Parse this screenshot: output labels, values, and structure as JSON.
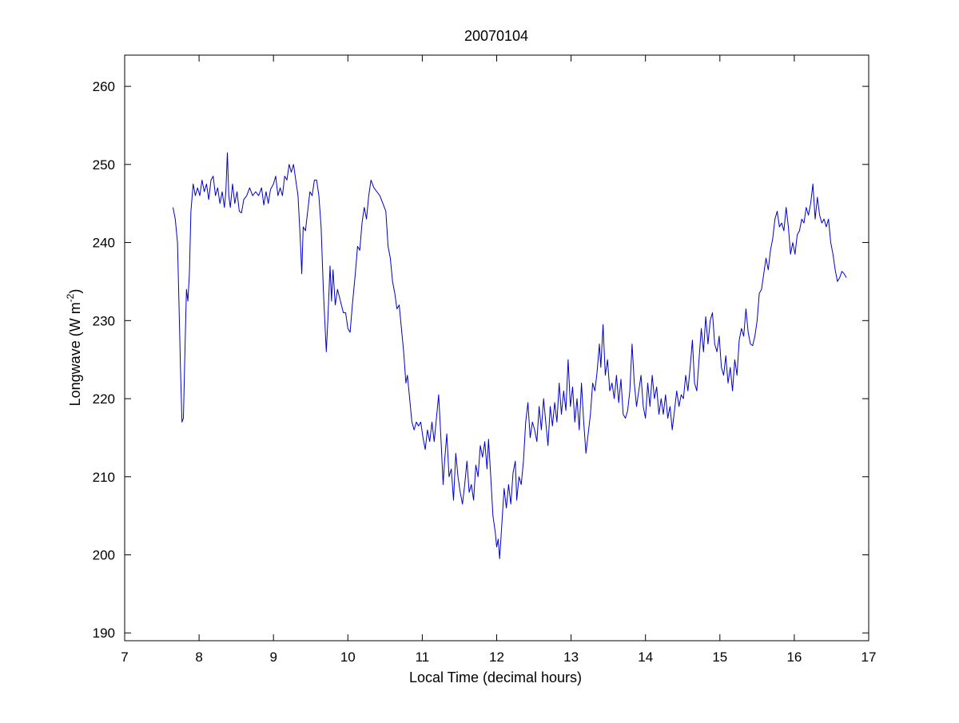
{
  "colors": {
    "series": "#0000cc",
    "axes": "#000000",
    "background": "#ffffff"
  },
  "chart_data": {
    "type": "line",
    "title": "20070104",
    "xlabel": "Local Time (decimal hours)",
    "ylabel_main": "Longwave (W m",
    "ylabel_sup": "-2",
    "ylabel_close": ")",
    "xlim": [
      7,
      17
    ],
    "ylim": [
      189,
      264
    ],
    "xticks": [
      7,
      8,
      9,
      10,
      11,
      12,
      13,
      14,
      15,
      16,
      17
    ],
    "yticks": [
      190,
      200,
      210,
      220,
      230,
      240,
      250,
      260
    ],
    "grid": false,
    "box": true,
    "series": [
      {
        "color": "#0000cc",
        "points": [
          [
            7.65,
            244.5
          ],
          [
            7.68,
            243.0
          ],
          [
            7.71,
            240.0
          ],
          [
            7.73,
            232.0
          ],
          [
            7.75,
            224.0
          ],
          [
            7.77,
            217.0
          ],
          [
            7.79,
            217.5
          ],
          [
            7.81,
            226.0
          ],
          [
            7.83,
            234.0
          ],
          [
            7.85,
            232.5
          ],
          [
            7.87,
            236.0
          ],
          [
            7.89,
            244.0
          ],
          [
            7.92,
            247.5
          ],
          [
            7.95,
            246.0
          ],
          [
            7.98,
            247.0
          ],
          [
            8.01,
            246.0
          ],
          [
            8.04,
            248.0
          ],
          [
            8.07,
            246.5
          ],
          [
            8.1,
            247.5
          ],
          [
            8.13,
            245.5
          ],
          [
            8.16,
            248.0
          ],
          [
            8.19,
            248.5
          ],
          [
            8.22,
            246.0
          ],
          [
            8.25,
            247.0
          ],
          [
            8.28,
            245.0
          ],
          [
            8.31,
            246.5
          ],
          [
            8.34,
            244.5
          ],
          [
            8.36,
            246.5
          ],
          [
            8.38,
            251.5
          ],
          [
            8.4,
            246.0
          ],
          [
            8.42,
            244.5
          ],
          [
            8.45,
            247.5
          ],
          [
            8.48,
            245.0
          ],
          [
            8.51,
            246.5
          ],
          [
            8.54,
            244.0
          ],
          [
            8.57,
            243.8
          ],
          [
            8.6,
            245.5
          ],
          [
            8.64,
            246.0
          ],
          [
            8.68,
            247.0
          ],
          [
            8.72,
            246.0
          ],
          [
            8.76,
            246.5
          ],
          [
            8.8,
            246.0
          ],
          [
            8.84,
            247.0
          ],
          [
            8.87,
            244.8
          ],
          [
            8.9,
            246.5
          ],
          [
            8.93,
            245.0
          ],
          [
            8.96,
            246.8
          ],
          [
            9.0,
            247.5
          ],
          [
            9.03,
            248.5
          ],
          [
            9.06,
            246.0
          ],
          [
            9.09,
            247.0
          ],
          [
            9.12,
            246.0
          ],
          [
            9.15,
            248.5
          ],
          [
            9.18,
            248.0
          ],
          [
            9.21,
            250.0
          ],
          [
            9.24,
            249.0
          ],
          [
            9.27,
            250.0
          ],
          [
            9.3,
            248.0
          ],
          [
            9.33,
            246.0
          ],
          [
            9.36,
            240.5
          ],
          [
            9.38,
            236.0
          ],
          [
            9.4,
            242.0
          ],
          [
            9.43,
            241.5
          ],
          [
            9.46,
            244.0
          ],
          [
            9.49,
            246.5
          ],
          [
            9.52,
            246.0
          ],
          [
            9.55,
            248.0
          ],
          [
            9.58,
            248.0
          ],
          [
            9.61,
            246.0
          ],
          [
            9.64,
            242.0
          ],
          [
            9.67,
            234.0
          ],
          [
            9.69,
            230.0
          ],
          [
            9.71,
            226.0
          ],
          [
            9.73,
            230.0
          ],
          [
            9.76,
            237.0
          ],
          [
            9.78,
            232.5
          ],
          [
            9.8,
            236.5
          ],
          [
            9.83,
            232.0
          ],
          [
            9.86,
            234.0
          ],
          [
            9.9,
            232.5
          ],
          [
            9.94,
            231.0
          ],
          [
            9.97,
            231.0
          ],
          [
            10.0,
            229.0
          ],
          [
            10.03,
            228.5
          ],
          [
            10.06,
            232.0
          ],
          [
            10.1,
            236.0
          ],
          [
            10.13,
            239.5
          ],
          [
            10.16,
            239.0
          ],
          [
            10.19,
            242.5
          ],
          [
            10.22,
            244.5
          ],
          [
            10.25,
            243.0
          ],
          [
            10.28,
            246.0
          ],
          [
            10.31,
            248.0
          ],
          [
            10.35,
            247.0
          ],
          [
            10.39,
            246.5
          ],
          [
            10.43,
            246.0
          ],
          [
            10.47,
            245.0
          ],
          [
            10.51,
            244.0
          ],
          [
            10.54,
            239.5
          ],
          [
            10.57,
            238.0
          ],
          [
            10.6,
            235.0
          ],
          [
            10.63,
            233.5
          ],
          [
            10.66,
            231.5
          ],
          [
            10.69,
            232.0
          ],
          [
            10.72,
            229.0
          ],
          [
            10.75,
            226.0
          ],
          [
            10.78,
            222.0
          ],
          [
            10.8,
            223.0
          ],
          [
            10.83,
            220.0
          ],
          [
            10.86,
            217.0
          ],
          [
            10.89,
            216.0
          ],
          [
            10.92,
            217.0
          ],
          [
            10.95,
            216.5
          ],
          [
            10.98,
            217.0
          ],
          [
            11.01,
            215.0
          ],
          [
            11.04,
            213.5
          ],
          [
            11.07,
            216.0
          ],
          [
            11.1,
            214.5
          ],
          [
            11.13,
            217.0
          ],
          [
            11.16,
            214.5
          ],
          [
            11.19,
            217.5
          ],
          [
            11.22,
            220.5
          ],
          [
            11.25,
            215.0
          ],
          [
            11.28,
            209.0
          ],
          [
            11.3,
            212.0
          ],
          [
            11.33,
            215.5
          ],
          [
            11.36,
            210.0
          ],
          [
            11.39,
            211.0
          ],
          [
            11.42,
            207.0
          ],
          [
            11.45,
            213.0
          ],
          [
            11.48,
            210.0
          ],
          [
            11.51,
            208.0
          ],
          [
            11.54,
            206.5
          ],
          [
            11.57,
            209.0
          ],
          [
            11.6,
            212.0
          ],
          [
            11.63,
            208.0
          ],
          [
            11.66,
            209.0
          ],
          [
            11.69,
            207.0
          ],
          [
            11.72,
            211.5
          ],
          [
            11.75,
            210.0
          ],
          [
            11.78,
            214.0
          ],
          [
            11.81,
            212.5
          ],
          [
            11.84,
            214.5
          ],
          [
            11.87,
            211.0
          ],
          [
            11.89,
            214.8
          ],
          [
            11.92,
            210.0
          ],
          [
            11.95,
            205.0
          ],
          [
            11.98,
            203.0
          ],
          [
            12.0,
            201.0
          ],
          [
            12.02,
            202.0
          ],
          [
            12.04,
            199.5
          ],
          [
            12.07,
            204.0
          ],
          [
            12.1,
            208.5
          ],
          [
            12.13,
            206.0
          ],
          [
            12.16,
            209.0
          ],
          [
            12.19,
            206.5
          ],
          [
            12.22,
            210.5
          ],
          [
            12.25,
            212.0
          ],
          [
            12.27,
            207.0
          ],
          [
            12.3,
            210.0
          ],
          [
            12.33,
            209.0
          ],
          [
            12.36,
            212.0
          ],
          [
            12.39,
            217.0
          ],
          [
            12.42,
            219.5
          ],
          [
            12.45,
            215.0
          ],
          [
            12.48,
            217.0
          ],
          [
            12.51,
            216.0
          ],
          [
            12.54,
            214.5
          ],
          [
            12.57,
            219.0
          ],
          [
            12.6,
            216.0
          ],
          [
            12.63,
            220.0
          ],
          [
            12.66,
            217.0
          ],
          [
            12.69,
            214.0
          ],
          [
            12.72,
            219.0
          ],
          [
            12.75,
            216.5
          ],
          [
            12.78,
            219.5
          ],
          [
            12.81,
            217.0
          ],
          [
            12.84,
            222.0
          ],
          [
            12.87,
            218.0
          ],
          [
            12.9,
            221.0
          ],
          [
            12.93,
            218.5
          ],
          [
            12.96,
            225.0
          ],
          [
            12.99,
            219.0
          ],
          [
            13.02,
            221.5
          ],
          [
            13.05,
            217.0
          ],
          [
            13.08,
            220.0
          ],
          [
            13.11,
            216.0
          ],
          [
            13.14,
            222.0
          ],
          [
            13.17,
            217.0
          ],
          [
            13.2,
            213.0
          ],
          [
            13.23,
            215.5
          ],
          [
            13.26,
            218.0
          ],
          [
            13.29,
            222.0
          ],
          [
            13.32,
            221.0
          ],
          [
            13.35,
            223.5
          ],
          [
            13.38,
            227.0
          ],
          [
            13.4,
            224.0
          ],
          [
            13.43,
            229.5
          ],
          [
            13.46,
            223.0
          ],
          [
            13.49,
            225.0
          ],
          [
            13.52,
            221.0
          ],
          [
            13.55,
            222.0
          ],
          [
            13.58,
            220.0
          ],
          [
            13.61,
            223.0
          ],
          [
            13.64,
            219.5
          ],
          [
            13.67,
            222.5
          ],
          [
            13.7,
            218.0
          ],
          [
            13.73,
            217.5
          ],
          [
            13.76,
            218.5
          ],
          [
            13.79,
            221.0
          ],
          [
            13.82,
            227.0
          ],
          [
            13.85,
            222.0
          ],
          [
            13.88,
            219.0
          ],
          [
            13.91,
            221.0
          ],
          [
            13.94,
            223.0
          ],
          [
            13.97,
            219.0
          ],
          [
            14.0,
            217.5
          ],
          [
            14.03,
            222.0
          ],
          [
            14.06,
            219.0
          ],
          [
            14.09,
            223.0
          ],
          [
            14.12,
            220.0
          ],
          [
            14.15,
            221.5
          ],
          [
            14.18,
            218.0
          ],
          [
            14.21,
            220.0
          ],
          [
            14.24,
            218.0
          ],
          [
            14.27,
            220.5
          ],
          [
            14.3,
            217.5
          ],
          [
            14.33,
            219.0
          ],
          [
            14.36,
            216.0
          ],
          [
            14.39,
            218.5
          ],
          [
            14.42,
            221.0
          ],
          [
            14.45,
            219.0
          ],
          [
            14.48,
            220.5
          ],
          [
            14.51,
            220.0
          ],
          [
            14.54,
            223.0
          ],
          [
            14.57,
            221.0
          ],
          [
            14.6,
            224.0
          ],
          [
            14.63,
            227.5
          ],
          [
            14.66,
            222.0
          ],
          [
            14.69,
            221.0
          ],
          [
            14.72,
            225.0
          ],
          [
            14.75,
            229.0
          ],
          [
            14.78,
            226.0
          ],
          [
            14.81,
            230.5
          ],
          [
            14.84,
            227.0
          ],
          [
            14.87,
            230.0
          ],
          [
            14.9,
            231.0
          ],
          [
            14.93,
            227.0
          ],
          [
            14.96,
            226.0
          ],
          [
            14.99,
            228.0
          ],
          [
            15.02,
            224.0
          ],
          [
            15.05,
            223.0
          ],
          [
            15.08,
            225.5
          ],
          [
            15.11,
            222.0
          ],
          [
            15.14,
            224.0
          ],
          [
            15.17,
            221.0
          ],
          [
            15.2,
            225.0
          ],
          [
            15.23,
            223.0
          ],
          [
            15.26,
            227.5
          ],
          [
            15.29,
            229.0
          ],
          [
            15.32,
            228.0
          ],
          [
            15.35,
            231.5
          ],
          [
            15.38,
            228.5
          ],
          [
            15.41,
            227.0
          ],
          [
            15.44,
            226.8
          ],
          [
            15.47,
            228.0
          ],
          [
            15.5,
            230.0
          ],
          [
            15.53,
            233.5
          ],
          [
            15.56,
            234.0
          ],
          [
            15.59,
            236.0
          ],
          [
            15.62,
            238.0
          ],
          [
            15.65,
            236.5
          ],
          [
            15.68,
            239.0
          ],
          [
            15.71,
            240.5
          ],
          [
            15.74,
            243.0
          ],
          [
            15.77,
            244.0
          ],
          [
            15.8,
            242.0
          ],
          [
            15.83,
            242.5
          ],
          [
            15.86,
            241.5
          ],
          [
            15.89,
            244.5
          ],
          [
            15.92,
            242.0
          ],
          [
            15.95,
            238.5
          ],
          [
            15.98,
            240.0
          ],
          [
            16.01,
            238.5
          ],
          [
            16.04,
            241.0
          ],
          [
            16.07,
            241.5
          ],
          [
            16.1,
            243.0
          ],
          [
            16.13,
            242.5
          ],
          [
            16.16,
            244.5
          ],
          [
            16.19,
            243.5
          ],
          [
            16.22,
            245.0
          ],
          [
            16.25,
            247.5
          ],
          [
            16.28,
            243.0
          ],
          [
            16.31,
            245.8
          ],
          [
            16.34,
            243.5
          ],
          [
            16.37,
            242.5
          ],
          [
            16.4,
            243.0
          ],
          [
            16.43,
            242.0
          ],
          [
            16.46,
            243.0
          ],
          [
            16.49,
            240.0
          ],
          [
            16.52,
            238.5
          ],
          [
            16.55,
            236.5
          ],
          [
            16.58,
            235.0
          ],
          [
            16.61,
            235.5
          ],
          [
            16.64,
            236.3
          ],
          [
            16.67,
            236.0
          ],
          [
            16.7,
            235.5
          ]
        ]
      }
    ]
  }
}
